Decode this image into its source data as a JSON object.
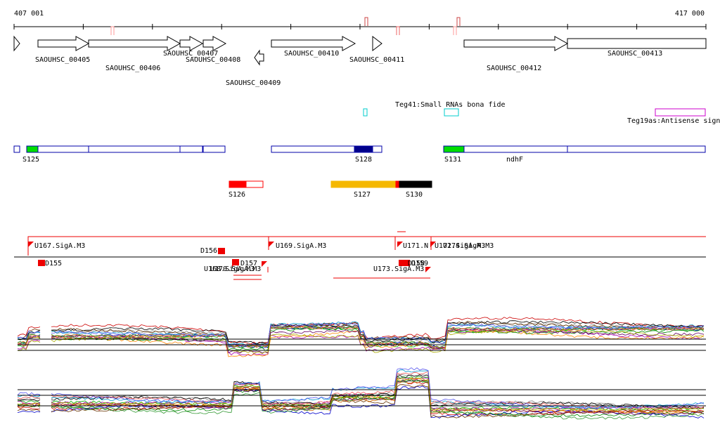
{
  "axis": {
    "start": "407 001",
    "end": "417 000"
  },
  "genes": [
    "SAOUHSC_00405",
    "SAOUHSC_00406",
    "SAOUHSC_00407",
    "SAOUHSC_00408",
    "SAOUHSC_00409",
    "SAOUHSC_00410",
    "SAOUHSC_00411",
    "SAOUHSC_00412",
    "SAOUHSC_00413"
  ],
  "rna_tracks": [
    "Teg41:Small RNAs bona fide",
    "Teg19as:Antisense sign"
  ],
  "segments": [
    "S125",
    "S128",
    "S131",
    "ndhF",
    "S126",
    "S127",
    "S130"
  ],
  "promoters": [
    "U167.SigA.M3",
    "D156",
    "D155",
    "U169.SigA.M3",
    "D157",
    "U168.SigA.M3",
    "U170.SigA.M3",
    "U171.N",
    "U172.SigA.M3",
    "U174.SigA.M3",
    "D158",
    "D159",
    "U173.SigA.M3"
  ]
}
